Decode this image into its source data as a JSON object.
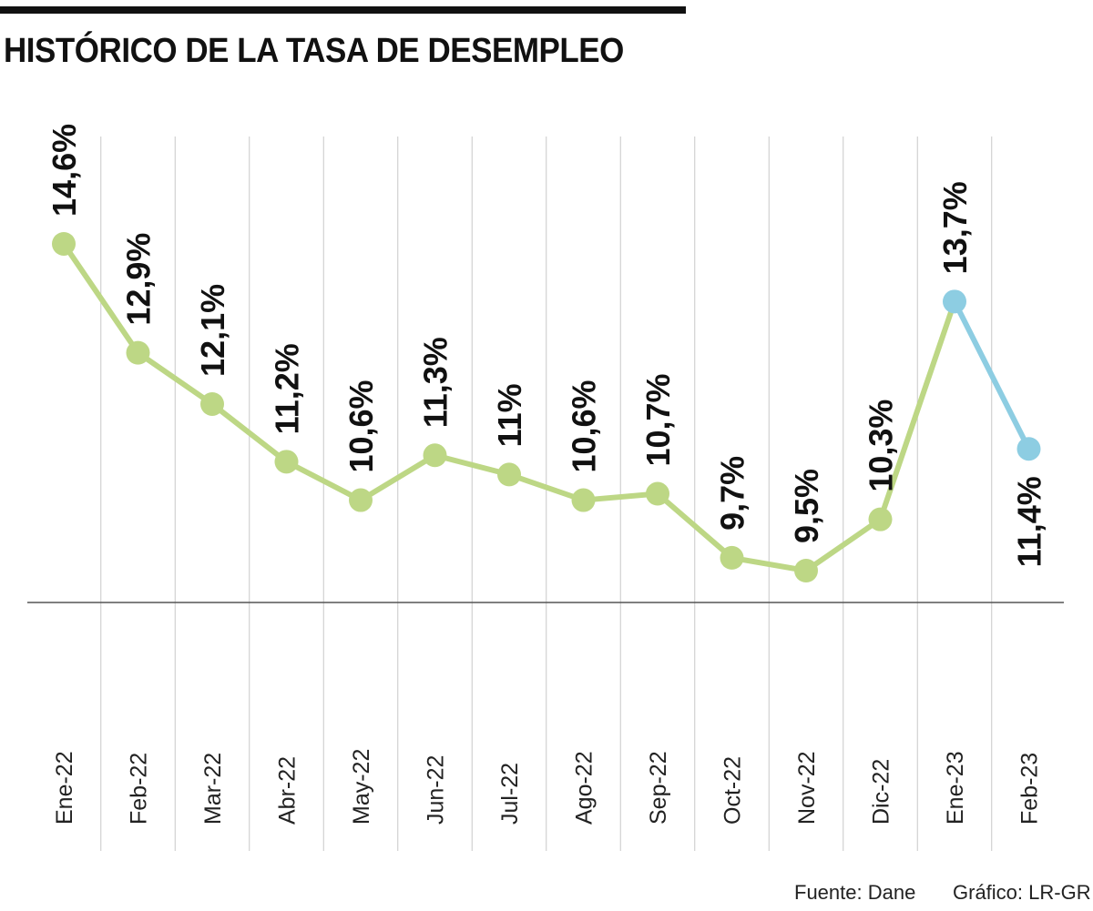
{
  "title": "HISTÓRICO DE LA TASA DE DESEMPLEO",
  "source": "Fuente: Dane",
  "credit": "Gráfico: LR-GR",
  "colors": {
    "series_2022": "#bdd785",
    "series_2023": "#8dcde2",
    "grid": "#c8c8c8",
    "axis": "#555555",
    "text": "#111111"
  },
  "chart_data": {
    "type": "line",
    "categories": [
      "Ene-22",
      "Feb-22",
      "Mar-22",
      "Abr-22",
      "May-22",
      "Jun-22",
      "Jul-22",
      "Ago-22",
      "Sep-22",
      "Oct-22",
      "Nov-22",
      "Dic-22",
      "Ene-23",
      "Feb-23"
    ],
    "values": [
      14.6,
      12.9,
      12.1,
      11.2,
      10.6,
      11.3,
      11,
      10.6,
      10.7,
      9.7,
      9.5,
      10.3,
      13.7,
      11.4
    ],
    "labels": [
      "14,6%",
      "12,9%",
      "12,1%",
      "11,2%",
      "10,6%",
      "11,3%",
      "11%",
      "10,6%",
      "10,7%",
      "9,7%",
      "9,5%",
      "10,3%",
      "13,7%",
      "11,4%"
    ],
    "segments": [
      {
        "from": 0,
        "to": 12,
        "color": "#bdd785"
      },
      {
        "from": 12,
        "to": 13,
        "color": "#8dcde2"
      }
    ],
    "grid": true,
    "xlabel": "",
    "ylabel": ""
  }
}
